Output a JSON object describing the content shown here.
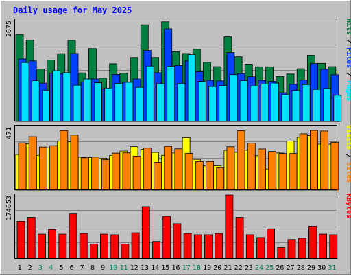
{
  "chart_data": {
    "type": "bar",
    "title": "Daily usage for May 2025",
    "categories": [
      "1",
      "2",
      "3",
      "4",
      "5",
      "6",
      "7",
      "8",
      "9",
      "10",
      "11",
      "12",
      "13",
      "14",
      "15",
      "16",
      "17",
      "18",
      "19",
      "20",
      "21",
      "22",
      "23",
      "24",
      "25",
      "26",
      "27",
      "28",
      "29",
      "30",
      "31"
    ],
    "weekend_days": [
      3,
      4,
      10,
      11,
      17,
      18,
      24,
      25,
      31
    ],
    "panels": [
      {
        "name": "hits-files-pages",
        "ymax_label": "2675",
        "ymax": 2675,
        "side_labels": [
          "Hits",
          "Files",
          "Pages"
        ],
        "series": [
          {
            "name": "Hits",
            "color": "#008040",
            "values": [
              2285,
              2140,
              1385,
              1620,
              1785,
              2135,
              1280,
              1920,
              1145,
              1520,
              1270,
              1685,
              2545,
              1685,
              2625,
              1835,
              1790,
              1900,
              1560,
              1445,
              2230,
              1705,
              1510,
              1440,
              1440,
              1190,
              1250,
              1390,
              1745,
              1530,
              1445
            ]
          },
          {
            "name": "Files",
            "color": "#0040ff",
            "values": [
              1645,
              1595,
              1010,
              1275,
              1260,
              1790,
              1040,
              1120,
              860,
              1240,
              1030,
              1120,
              1870,
              1285,
              2440,
              1475,
              1595,
              1310,
              1085,
              1070,
              1815,
              1260,
              1180,
              1080,
              1060,
              760,
              980,
              1090,
              1525,
              1375,
              1230
            ]
          },
          {
            "name": "Pages",
            "color": "#00e0ff",
            "values": [
              1550,
              1075,
              825,
              1335,
              1285,
              955,
              1120,
              1020,
              880,
              1005,
              1030,
              900,
              1460,
              995,
              1455,
              1005,
              1760,
              1055,
              920,
              945,
              1235,
              1075,
              930,
              985,
              1010,
              710,
              820,
              970,
              845,
              870,
              690
            ]
          }
        ]
      },
      {
        "name": "visits-sites",
        "ymax_label": "471",
        "ymax": 471,
        "side_labels": [
          "Visits",
          "Sites"
        ],
        "series": [
          {
            "name": "Visits",
            "color": "#ffff00",
            "values": [
              263,
              341,
              256,
              311,
              361,
              356,
              243,
              241,
              236,
              256,
              288,
              321,
              301,
              278,
              256,
              274,
              388,
              227,
              179,
              180,
              293,
              279,
              295,
              254,
              156,
              274,
              362,
              390,
              403,
              339,
              339
            ]
          },
          {
            "name": "Sites",
            "color": "#ff8000",
            "values": [
              349,
              395,
              318,
              328,
              439,
              406,
              239,
              244,
              225,
              273,
              275,
              251,
              310,
              205,
              323,
              305,
              271,
              211,
              211,
              164,
              320,
              438,
              347,
              304,
              285,
              270,
              270,
              416,
              440,
              436,
              353
            ]
          }
        ]
      },
      {
        "name": "kbytes",
        "ymax_label": "174653",
        "ymax": 174653,
        "side_labels": [
          "KBytes"
        ],
        "series": [
          {
            "name": "KBytes",
            "color": "#ff0000",
            "values": [
              102560,
              113515,
              67505,
              80281,
              67505,
              122643,
              69330,
              40125,
              67505,
              65681,
              40125,
              71156,
              142729,
              47424,
              116165,
              95930,
              69330,
              65681,
              65681,
              69330,
              174653,
              113515,
              65681,
              58381,
              82106,
              31000,
              52899,
              56555,
              89456,
              67505,
              65681
            ]
          }
        ]
      }
    ]
  }
}
